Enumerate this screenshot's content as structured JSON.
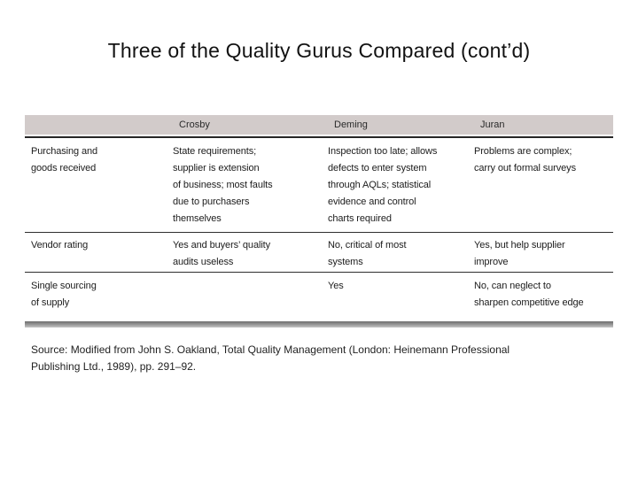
{
  "title": "Three of the Quality Gurus Compared (cont’d)",
  "table": {
    "headers": [
      "Crosby",
      "Deming",
      "Juran"
    ],
    "rows": [
      {
        "label": "Purchasing and\ngoods received",
        "crosby": "State requirements;\nsupplier is extension\nof business; most faults\ndue to purchasers\nthemselves",
        "deming": "Inspection too late; allows\ndefects to enter system\nthrough AQLs; statistical\nevidence and control\ncharts required",
        "juran": "Problems are complex;\ncarry out formal surveys"
      },
      {
        "label": "Vendor rating",
        "crosby": "Yes and buyers’ quality\naudits useless",
        "deming": "No, critical of most\nsystems",
        "juran": "Yes, but help supplier\nimprove"
      },
      {
        "label": "Single sourcing\nof supply",
        "crosby": "",
        "deming": "Yes",
        "juran": "No, can neglect to\nsharpen competitive edge"
      }
    ]
  },
  "source": {
    "text": "Source: Modified from John S. Oakland, Total Quality Management (London: Heinemann Professional\nPublishing Ltd., 1989), pp. 291–92."
  },
  "colors": {
    "header_bg": "#d2cbca",
    "rule": "#262626",
    "bottom_bar_top": "#6e6e6e",
    "bottom_bar_bottom": "#c6c6c6"
  }
}
